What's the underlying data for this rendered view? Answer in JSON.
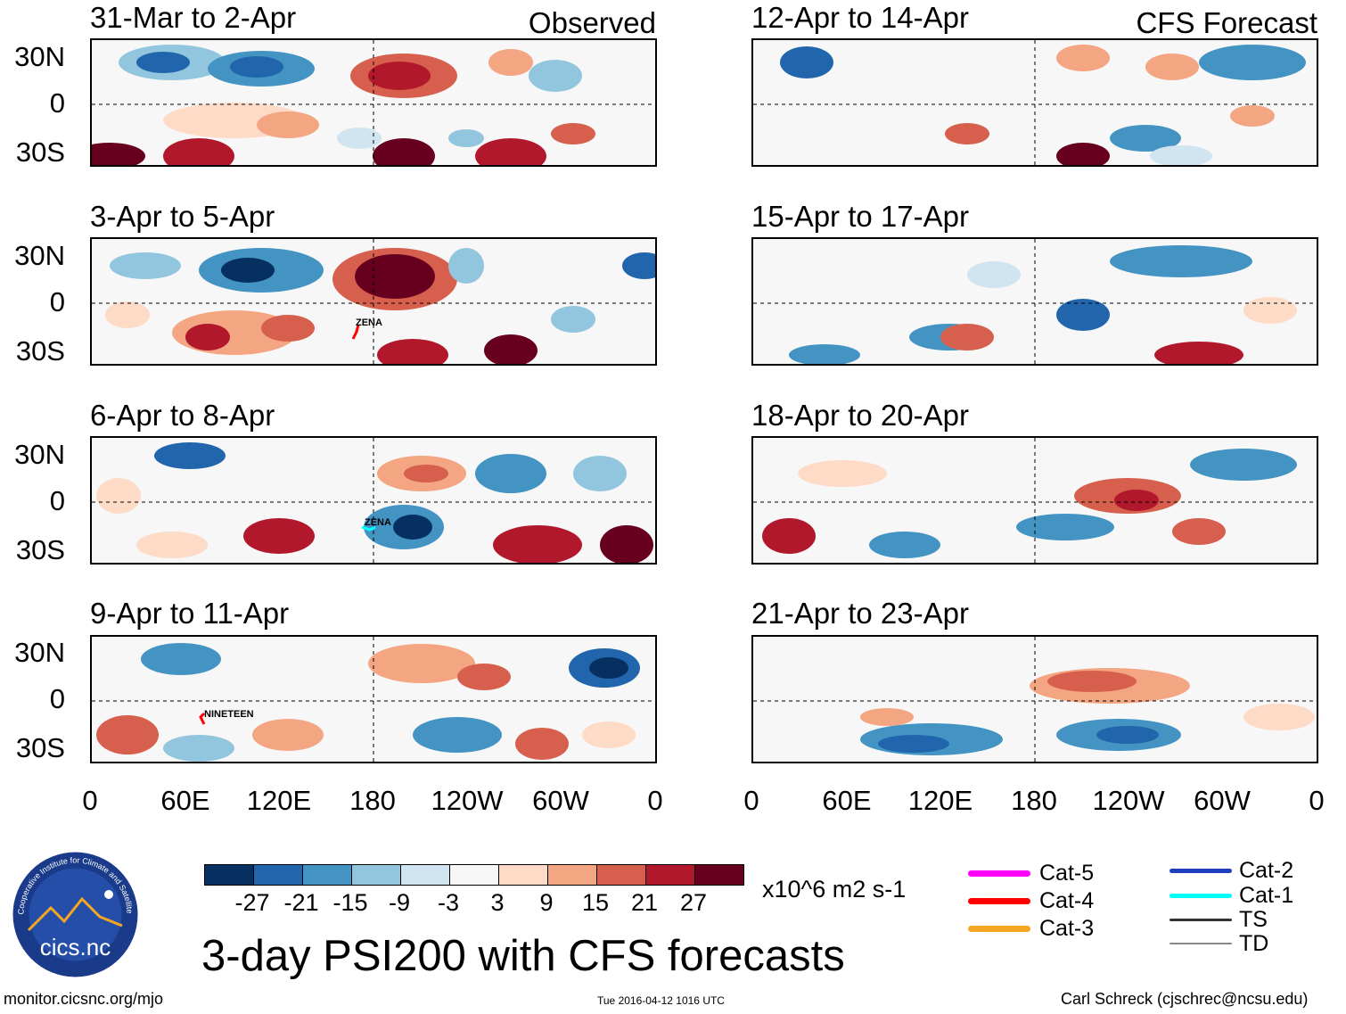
{
  "headers": {
    "left": "Observed",
    "right": "CFS Forecast"
  },
  "panels": [
    {
      "title": "31-Mar to 2-Apr",
      "column": "observed"
    },
    {
      "title": "3-Apr to 5-Apr",
      "column": "observed",
      "storm": "ZENA"
    },
    {
      "title": "6-Apr to 8-Apr",
      "column": "observed",
      "storm": "ZENA"
    },
    {
      "title": "9-Apr to 11-Apr",
      "column": "observed",
      "storm": "NINETEEN"
    },
    {
      "title": "12-Apr to 14-Apr",
      "column": "forecast"
    },
    {
      "title": "15-Apr to 17-Apr",
      "column": "forecast"
    },
    {
      "title": "18-Apr to 20-Apr",
      "column": "forecast"
    },
    {
      "title": "21-Apr to 23-Apr",
      "column": "forecast"
    }
  ],
  "lat_labels": [
    "30N",
    "0",
    "30S"
  ],
  "lon_labels": [
    "0",
    "60E",
    "120E",
    "180",
    "120W",
    "60W",
    "0"
  ],
  "colorbar": {
    "colors": [
      "#053061",
      "#2166ac",
      "#4393c3",
      "#92c5de",
      "#d1e5f0",
      "#f7f7f7",
      "#fddbc7",
      "#f4a582",
      "#d6604d",
      "#b2182b",
      "#67001f"
    ],
    "labels": [
      "-27",
      "-21",
      "-15",
      "-9",
      "-3",
      "3",
      "9",
      "15",
      "21",
      "27"
    ],
    "units": "x10^6 m2 s-1"
  },
  "legend": {
    "left": [
      {
        "label": "Cat-5",
        "color": "#ff00ff"
      },
      {
        "label": "Cat-4",
        "color": "#ff0000"
      },
      {
        "label": "Cat-3",
        "color": "#f5a623"
      }
    ],
    "right": [
      {
        "label": "Cat-2",
        "color": "#1f3fbf"
      },
      {
        "label": "Cat-1",
        "color": "#00ffff"
      },
      {
        "label": "TS",
        "color": "#333333"
      },
      {
        "label": "TD",
        "color": "#888888"
      }
    ]
  },
  "logo": {
    "text": "cics.nc",
    "ring_text": "Cooperative Institute for Climate and Satellites"
  },
  "title": "3-day PSI200 with CFS forecasts",
  "footer": {
    "left": "monitor.cicsnc.org/mjo",
    "center": "Tue 2016-04-12 1016 UTC",
    "right": "Carl Schreck (cjschrec@ncsu.edu)"
  }
}
